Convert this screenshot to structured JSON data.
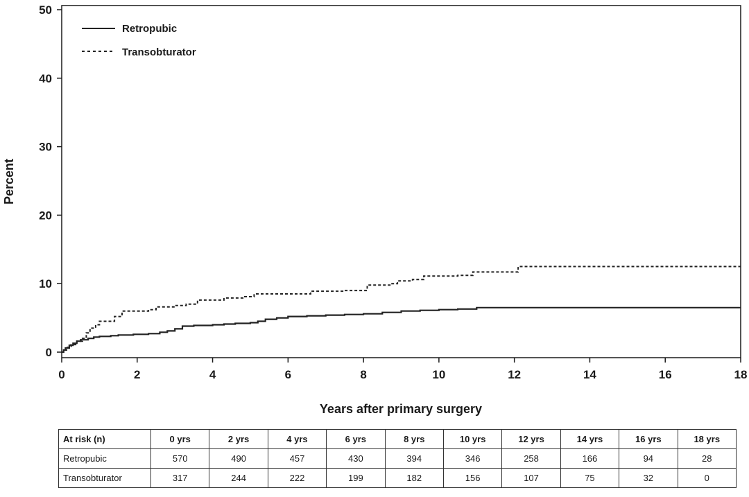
{
  "chart_data": {
    "type": "line",
    "title": "",
    "xlabel": "Years after primary surgery",
    "ylabel": "Percent",
    "xlim": [
      0,
      18
    ],
    "ylim": [
      0,
      50
    ],
    "x_ticks": [
      "0",
      "2",
      "4",
      "6",
      "8",
      "10",
      "12",
      "14",
      "16",
      "18"
    ],
    "y_ticks": [
      "0",
      "10",
      "20",
      "30",
      "40",
      "50"
    ],
    "grid": false,
    "legend_position": "top-left",
    "step": true,
    "series": [
      {
        "name": "Retropubic",
        "style": "solid",
        "color": "#222222",
        "points": [
          [
            0,
            0
          ],
          [
            0.05,
            0.3
          ],
          [
            0.1,
            0.6
          ],
          [
            0.2,
            1.0
          ],
          [
            0.3,
            1.3
          ],
          [
            0.4,
            1.6
          ],
          [
            0.5,
            1.8
          ],
          [
            0.7,
            2.0
          ],
          [
            0.85,
            2.2
          ],
          [
            1.0,
            2.3
          ],
          [
            1.3,
            2.4
          ],
          [
            1.5,
            2.5
          ],
          [
            1.9,
            2.6
          ],
          [
            2.3,
            2.7
          ],
          [
            2.6,
            2.9
          ],
          [
            2.8,
            3.1
          ],
          [
            3.0,
            3.4
          ],
          [
            3.2,
            3.8
          ],
          [
            3.5,
            3.9
          ],
          [
            4.0,
            4.0
          ],
          [
            4.3,
            4.1
          ],
          [
            4.6,
            4.2
          ],
          [
            5.0,
            4.3
          ],
          [
            5.2,
            4.5
          ],
          [
            5.4,
            4.8
          ],
          [
            5.7,
            5.0
          ],
          [
            6.0,
            5.2
          ],
          [
            6.5,
            5.3
          ],
          [
            7.0,
            5.4
          ],
          [
            7.5,
            5.5
          ],
          [
            8.0,
            5.6
          ],
          [
            8.5,
            5.8
          ],
          [
            9.0,
            6.0
          ],
          [
            9.5,
            6.1
          ],
          [
            10.0,
            6.2
          ],
          [
            10.5,
            6.3
          ],
          [
            11.0,
            6.5
          ],
          [
            18.0,
            6.5
          ]
        ]
      },
      {
        "name": "Transobturator",
        "style": "dashed",
        "color": "#222222",
        "points": [
          [
            0,
            0
          ],
          [
            0.05,
            0.3
          ],
          [
            0.15,
            0.7
          ],
          [
            0.25,
            1.1
          ],
          [
            0.4,
            1.6
          ],
          [
            0.55,
            2.0
          ],
          [
            0.65,
            2.8
          ],
          [
            0.75,
            3.5
          ],
          [
            0.9,
            4.0
          ],
          [
            1.0,
            4.5
          ],
          [
            1.4,
            5.2
          ],
          [
            1.6,
            6.0
          ],
          [
            2.3,
            6.2
          ],
          [
            2.5,
            6.6
          ],
          [
            3.0,
            6.8
          ],
          [
            3.3,
            7.0
          ],
          [
            3.6,
            7.6
          ],
          [
            4.3,
            7.9
          ],
          [
            4.8,
            8.1
          ],
          [
            5.1,
            8.5
          ],
          [
            6.6,
            8.9
          ],
          [
            7.5,
            9.0
          ],
          [
            8.1,
            9.8
          ],
          [
            8.7,
            10.0
          ],
          [
            8.9,
            10.4
          ],
          [
            9.3,
            10.6
          ],
          [
            9.6,
            11.1
          ],
          [
            10.5,
            11.2
          ],
          [
            10.9,
            11.7
          ],
          [
            12.1,
            12.5
          ],
          [
            18.0,
            12.5
          ]
        ]
      }
    ]
  },
  "risk_table": {
    "header": [
      "At risk (n)",
      "0 yrs",
      "2 yrs",
      "4 yrs",
      "6 yrs",
      "8 yrs",
      "10 yrs",
      "12 yrs",
      "14 yrs",
      "16 yrs",
      "18 yrs"
    ],
    "rows": [
      [
        "Retropubic",
        "570",
        "490",
        "457",
        "430",
        "394",
        "346",
        "258",
        "166",
        "94",
        "28"
      ],
      [
        "Transobturator",
        "317",
        "244",
        "222",
        "199",
        "182",
        "156",
        "107",
        "75",
        "32",
        "0"
      ]
    ]
  }
}
